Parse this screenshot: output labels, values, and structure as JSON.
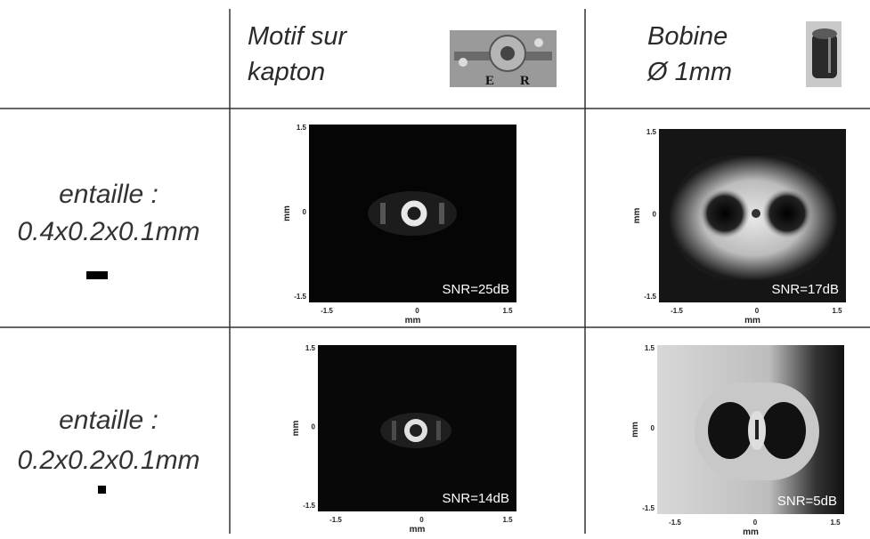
{
  "columns": [
    {
      "title_lines": [
        "Motif sur",
        "kapton"
      ]
    },
    {
      "title_lines": [
        "Bobine",
        "Ø 1mm"
      ]
    }
  ],
  "rows": [
    {
      "label_lines": [
        "entaille :",
        "0.4x0.2x0.1mm"
      ],
      "images": [
        {
          "snr": "SNR=25dB",
          "x_label": "mm",
          "y_label": "mm",
          "x_ticks": [
            "-1.5",
            "0",
            "1.5"
          ],
          "y_ticks": [
            "1.5",
            "0",
            "-1.5"
          ]
        },
        {
          "snr": "SNR=17dB",
          "x_label": "mm",
          "y_label": "mm",
          "x_ticks": [
            "-1.5",
            "0",
            "1.5"
          ],
          "y_ticks": [
            "1.5",
            "0",
            "-1.5"
          ]
        }
      ]
    },
    {
      "label_lines": [
        "entaille :",
        "0.2x0.2x0.1mm"
      ],
      "images": [
        {
          "snr": "SNR=14dB",
          "x_label": "mm",
          "y_label": "mm",
          "x_ticks": [
            "-1.5",
            "0",
            "1.5"
          ],
          "y_ticks": [
            "1.5",
            "0",
            "-1.5"
          ]
        },
        {
          "snr": "SNR=5dB",
          "x_label": "mm",
          "y_label": "mm",
          "x_ticks": [
            "-1.5",
            "0",
            "1.5"
          ],
          "y_ticks": [
            "1.5",
            "0",
            "-1.5"
          ]
        }
      ]
    }
  ]
}
